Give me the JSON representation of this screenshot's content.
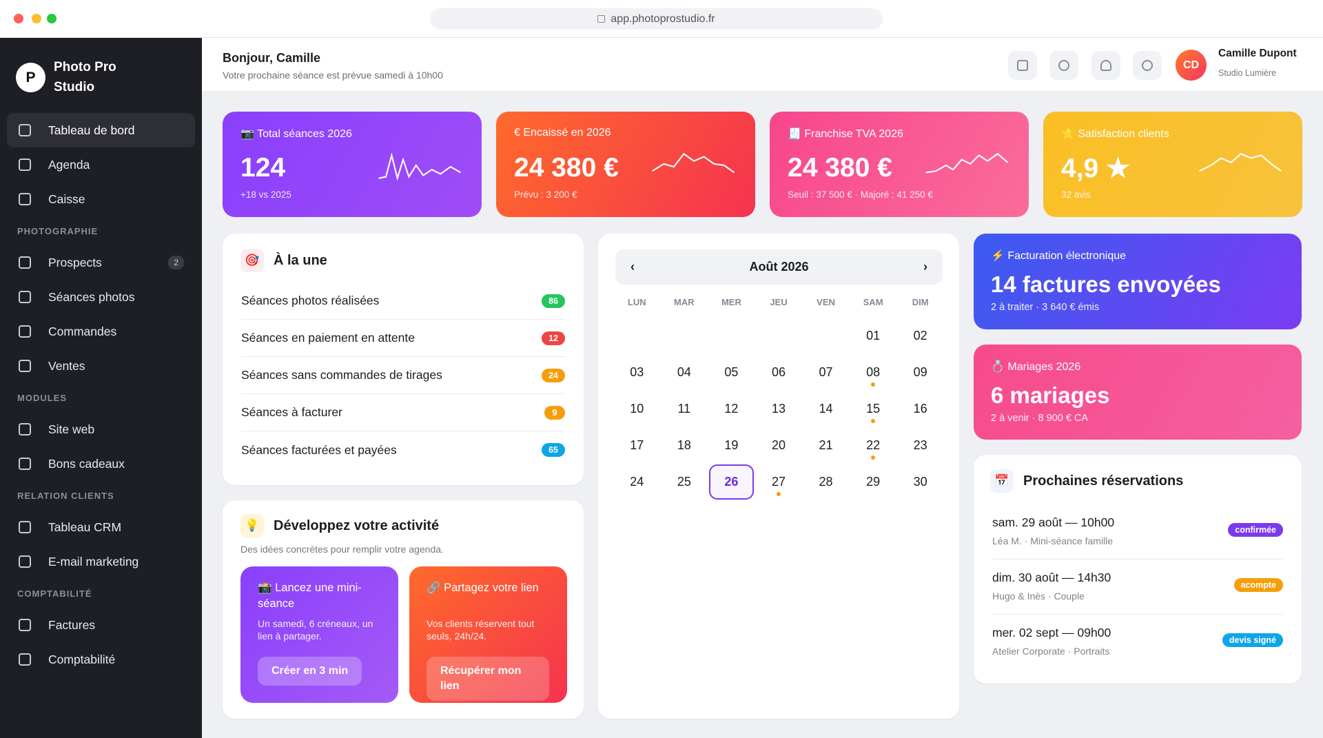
{
  "browser": {
    "url": "app.photoprostudio.fr"
  },
  "sidebar": {
    "logo_letter": "P",
    "brand": "Photo Pro Studio",
    "items": [
      {
        "label": "Tableau de bord",
        "active": true
      },
      {
        "label": "Agenda"
      },
      {
        "label": "Caisse"
      }
    ],
    "sections": [
      {
        "title": "PHOTOGRAPHIE",
        "items": [
          {
            "label": "Prospects",
            "badge": "2"
          },
          {
            "label": "Séances photos"
          },
          {
            "label": "Commandes"
          },
          {
            "label": "Ventes"
          }
        ]
      },
      {
        "title": "MODULES",
        "items": [
          {
            "label": "Site web"
          },
          {
            "label": "Bons cadeaux"
          }
        ]
      },
      {
        "title": "RELATION CLIENTS",
        "items": [
          {
            "label": "Tableau CRM"
          },
          {
            "label": "E-mail marketing"
          }
        ]
      },
      {
        "title": "COMPTABILITÉ",
        "items": [
          {
            "label": "Factures"
          },
          {
            "label": "Comptabilité"
          }
        ]
      }
    ]
  },
  "header": {
    "greeting": "Bonjour, Camille",
    "subtitle": "Votre prochaine séance est prévue samedi à 10h00",
    "user": {
      "initials": "CD",
      "name": "Camille Dupont",
      "studio": "Studio Lumière"
    }
  },
  "kpis": [
    {
      "label": "📷 Total séances 2026",
      "value": "124",
      "note": "+18 vs 2025"
    },
    {
      "label": "€ Encaissé en 2026",
      "value": "24 380 €",
      "note": "Prévu : 3 200 €"
    },
    {
      "label": "🧾 Franchise TVA 2026",
      "value": "24 380 €",
      "note": "Seuil : 37 500 € · Majoré : 41 250 €"
    },
    {
      "label": "⭐ Satisfaction clients",
      "value": "4,9 ★",
      "note": "32 avis"
    }
  ],
  "highlights": {
    "icon": "🎯",
    "title": "À la une",
    "rows": [
      {
        "label": "Séances photos réalisées",
        "count": 86,
        "color": "#22c55e"
      },
      {
        "label": "Séances en paiement en attente",
        "count": 12,
        "color": "#ef4444"
      },
      {
        "label": "Séances sans commandes de tirages",
        "count": 24,
        "color": "#f59e0b"
      },
      {
        "label": "Séances à facturer",
        "count": 9,
        "color": "#f59e0b"
      },
      {
        "label": "Séances facturées et payées",
        "count": 65,
        "color": "#0ea5e9"
      }
    ]
  },
  "grow": {
    "icon": "💡",
    "title": "Développez votre activité",
    "subtitle": "Des idées concrètes pour remplir votre agenda.",
    "cards": [
      {
        "title": "📸 Lancez une mini-séance",
        "text": "Un samedi, 6 créneaux, un lien à partager.",
        "button": "Créer en 3 min"
      },
      {
        "title": "🔗 Partagez votre lien",
        "text": "Vos clients réservent tout seuls, 24h/24.",
        "button": "Récupérer mon lien"
      }
    ]
  },
  "calendar": {
    "prev": "‹",
    "month": "Août 2026",
    "next": "›",
    "weekdays": [
      "LUN",
      "MAR",
      "MER",
      "JEU",
      "VEN",
      "SAM",
      "DIM"
    ],
    "days": [
      null,
      null,
      null,
      null,
      null,
      {
        "label": "01"
      },
      {
        "label": "02"
      },
      {
        "label": "03"
      },
      {
        "label": "04"
      },
      {
        "label": "05"
      },
      {
        "label": "06"
      },
      {
        "label": "07"
      },
      {
        "label": "08",
        "event": true
      },
      {
        "label": "09"
      },
      {
        "label": "10"
      },
      {
        "label": "11"
      },
      {
        "label": "12"
      },
      {
        "label": "13"
      },
      {
        "label": "14"
      },
      {
        "label": "15",
        "event": true
      },
      {
        "label": "16"
      },
      {
        "label": "17"
      },
      {
        "label": "18"
      },
      {
        "label": "19"
      },
      {
        "label": "20"
      },
      {
        "label": "21"
      },
      {
        "label": "22",
        "event": true
      },
      {
        "label": "23"
      },
      {
        "label": "24"
      },
      {
        "label": "25"
      },
      {
        "label": "26",
        "today": true
      },
      {
        "label": "27",
        "event": true
      },
      {
        "label": "28"
      },
      {
        "label": "29"
      },
      {
        "label": "30"
      }
    ]
  },
  "invoicing": {
    "label": "⚡ Facturation électronique",
    "value": "14 factures envoyées",
    "note": "2 à traiter · 3 640 € émis"
  },
  "weddings": {
    "label": "💍 Mariages 2026",
    "value": "6 mariages",
    "note": "2 à venir · 8 900 € CA"
  },
  "bookings": {
    "icon": "📅",
    "title": "Prochaines réservations",
    "items": [
      {
        "title": "sam. 29 août — 10h00",
        "detail": "Léa M. · Mini-séance famille",
        "status": "confirmée",
        "color": "#7c3aed"
      },
      {
        "title": "dim. 30 août — 14h30",
        "detail": "Hugo & Inès · Couple",
        "status": "acompte",
        "color": "#f59e0b"
      },
      {
        "title": "mer. 02 sept — 09h00",
        "detail": "Atelier Corporate · Portraits",
        "status": "devis signé",
        "color": "#0ea5e9"
      }
    ]
  }
}
